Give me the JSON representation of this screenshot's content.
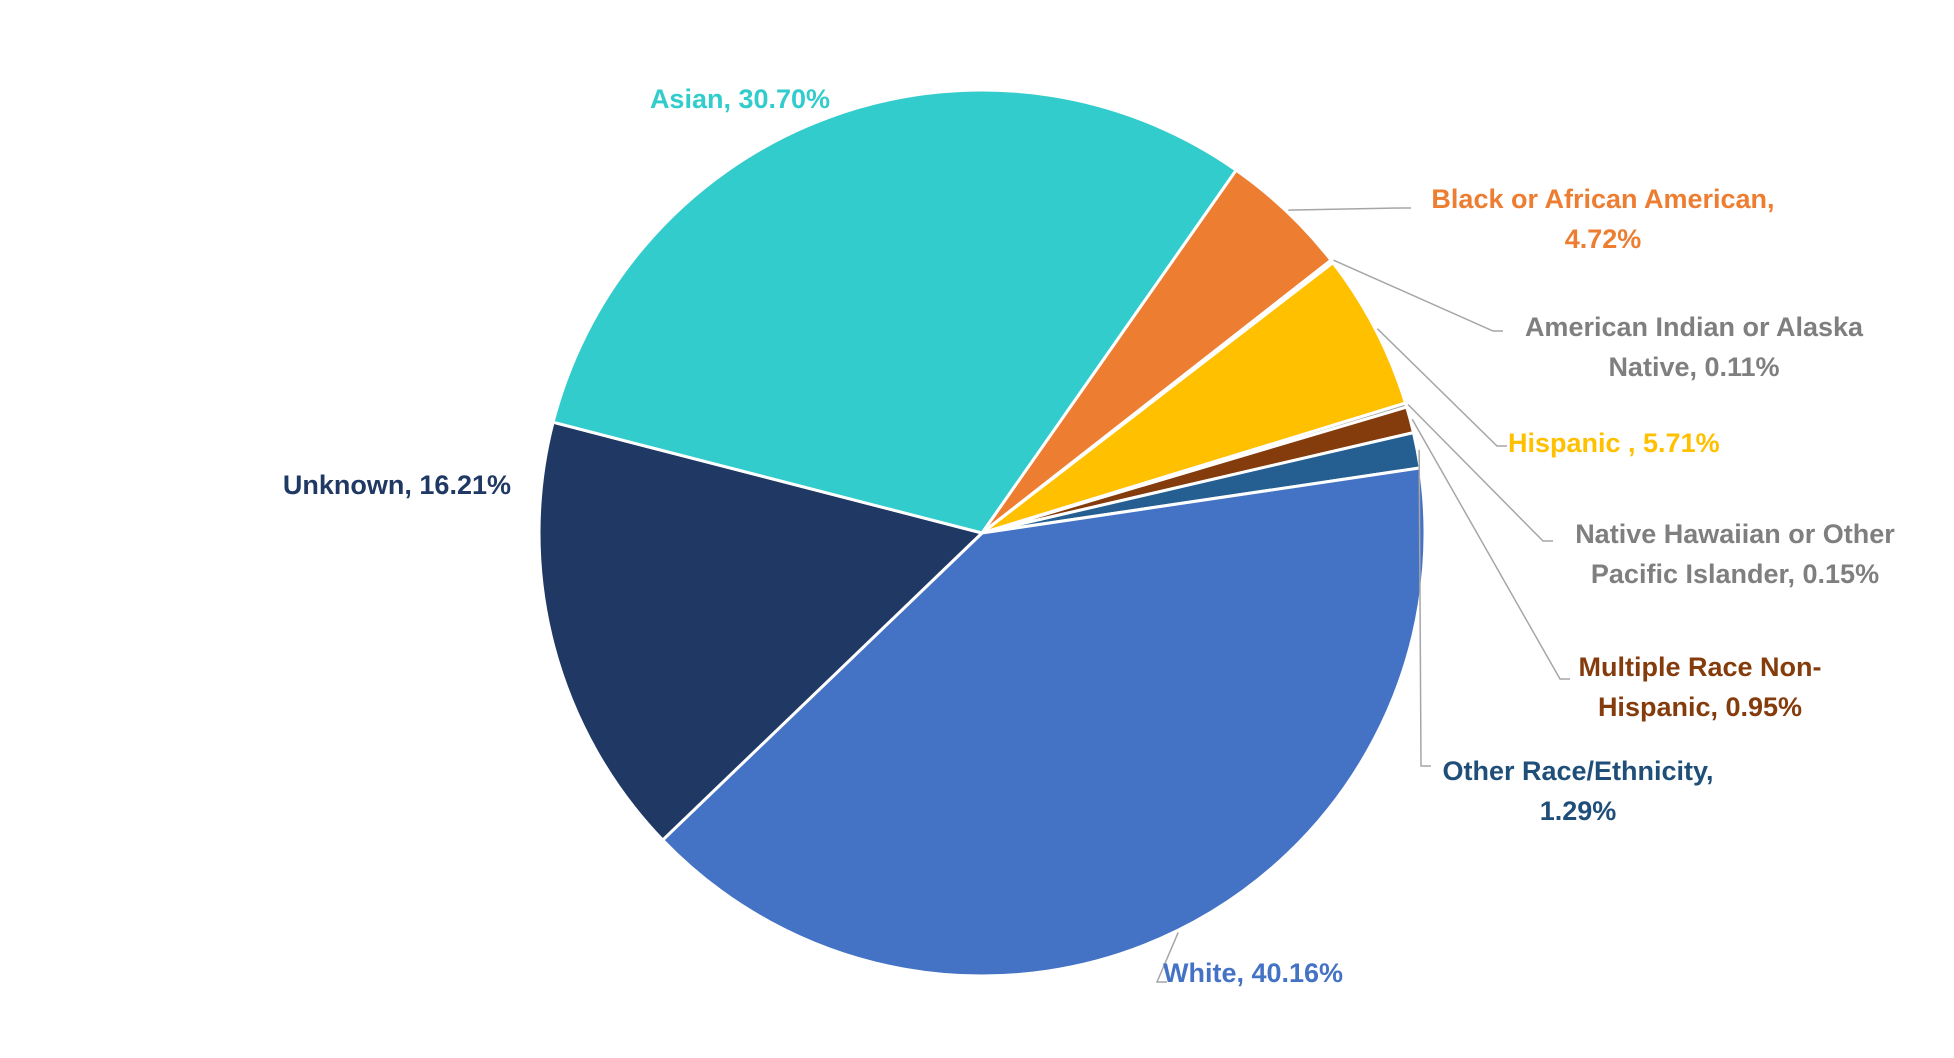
{
  "chart_data": {
    "type": "pie",
    "title": "",
    "start_angle_deg": -55,
    "direction": "clockwise",
    "slices": [
      {
        "name": "Black or African American",
        "value": 4.72,
        "color": "#ED7D31",
        "label_lines": [
          "Black or African American,",
          "4.72%"
        ]
      },
      {
        "name": "American Indian or Alaska Native",
        "value": 0.11,
        "color": "#A5A5A5",
        "label_lines": [
          "American Indian or Alaska",
          "Native, 0.11%"
        ],
        "label_color": "#7F7F7F"
      },
      {
        "name": "Hispanic",
        "value": 5.71,
        "color": "#FFC000",
        "label_lines": [
          "Hispanic , 5.71%"
        ]
      },
      {
        "name": "Native Hawaiian or Other Pacific Islander",
        "value": 0.15,
        "color": "#A5A5A5",
        "label_lines": [
          "Native Hawaiian or Other",
          "Pacific Islander, 0.15%"
        ],
        "label_color": "#7F7F7F"
      },
      {
        "name": "Multiple Race Non-Hispanic",
        "value": 0.95,
        "color": "#843C0C",
        "label_lines": [
          "Multiple Race Non-",
          "Hispanic, 0.95%"
        ]
      },
      {
        "name": "Other Race/Ethnicity",
        "value": 1.29,
        "color": "#255E91",
        "label_lines": [
          "Other Race/Ethnicity,",
          "1.29%"
        ],
        "label_color": "#1F4E79"
      },
      {
        "name": "White",
        "value": 40.16,
        "color": "#4472C4",
        "label_lines": [
          "White, 40.16%"
        ]
      },
      {
        "name": "Unknown",
        "value": 16.21,
        "color": "#203864",
        "label_lines": [
          "Unknown, 16.21%"
        ]
      },
      {
        "name": "Asian",
        "value": 30.7,
        "color": "#33CCCC",
        "label_lines": [
          "Asian, 30.70%"
        ]
      }
    ],
    "legend": "none",
    "leader_line_color": "#A6A6A6"
  }
}
